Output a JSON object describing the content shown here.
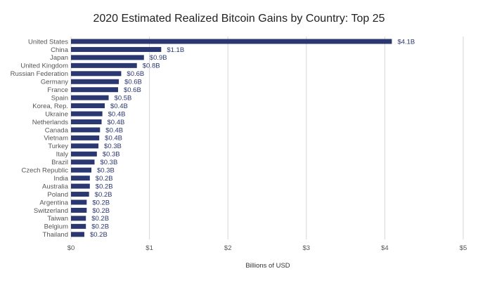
{
  "chart_data": {
    "type": "bar",
    "orientation": "horizontal",
    "title": "2020 Estimated Realized Bitcoin Gains by Country: Top 25",
    "xlabel": "Billions of USD",
    "ylabel": "",
    "xlim": [
      0,
      5
    ],
    "x_ticks": [
      0,
      1,
      2,
      3,
      4,
      5
    ],
    "x_tick_labels": [
      "$0",
      "$1",
      "$2",
      "$3",
      "$4",
      "$5"
    ],
    "grid": true,
    "bar_color": "#2b3770",
    "categories": [
      "United States",
      "China",
      "Japan",
      "United Kingdom",
      "Russian Federation",
      "Germany",
      "France",
      "Spain",
      "Korea, Rep.",
      "Ukraine",
      "Netherlands",
      "Canada",
      "Vietnam",
      "Turkey",
      "Italy",
      "Brazil",
      "Czech Republic",
      "India",
      "Australia",
      "Poland",
      "Argentina",
      "Switzerland",
      "Taiwan",
      "Belgium",
      "Thailand"
    ],
    "values": [
      4.09,
      1.15,
      0.93,
      0.84,
      0.64,
      0.61,
      0.6,
      0.48,
      0.43,
      0.4,
      0.39,
      0.37,
      0.36,
      0.35,
      0.33,
      0.3,
      0.26,
      0.24,
      0.24,
      0.23,
      0.2,
      0.2,
      0.19,
      0.19,
      0.17
    ],
    "data_labels": [
      "$4.1B",
      "$1.1B",
      "$0.9B",
      "$0.8B",
      "$0.6B",
      "$0.6B",
      "$0.6B",
      "$0.5B",
      "$0.4B",
      "$0.4B",
      "$0.4B",
      "$0.4B",
      "$0.4B",
      "$0.3B",
      "$0.3B",
      "$0.3B",
      "$0.3B",
      "$0.2B",
      "$0.2B",
      "$0.2B",
      "$0.2B",
      "$0.2B",
      "$0.2B",
      "$0.2B",
      "$0.2B"
    ]
  }
}
